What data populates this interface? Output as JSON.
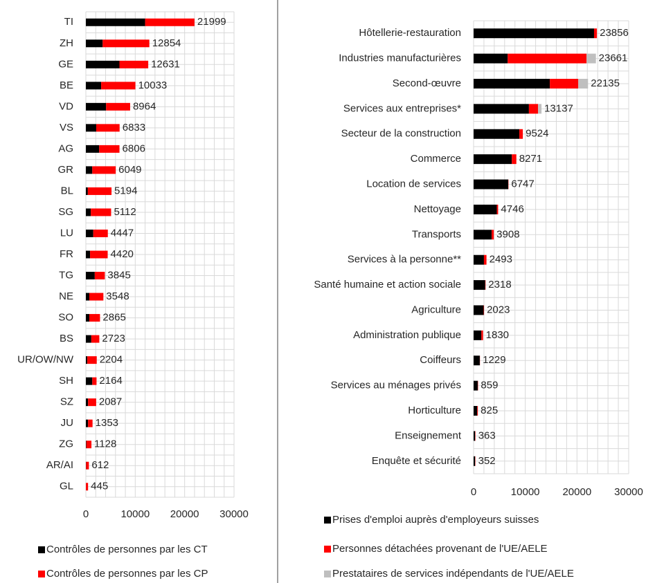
{
  "chart_data": [
    {
      "type": "hbar_stacked",
      "categories": [
        "TI",
        "ZH",
        "GE",
        "BE",
        "VD",
        "VS",
        "AG",
        "GR",
        "BL",
        "SG",
        "LU",
        "FR",
        "TG",
        "NE",
        "SO",
        "BS",
        "UR/OW/NW",
        "SH",
        "SZ",
        "JU",
        "ZG",
        "AR/AI",
        "GL"
      ],
      "series": [
        {
          "name": "Contrôles de personnes par les CT",
          "color": "#000000",
          "values": [
            12000,
            3400,
            6800,
            3100,
            4100,
            2100,
            2700,
            1300,
            400,
            1000,
            1500,
            850,
            1800,
            700,
            700,
            1100,
            300,
            1300,
            450,
            450,
            100,
            50,
            20
          ]
        },
        {
          "name": "Contrôles de personnes par les CP",
          "color": "#ff0000",
          "values": [
            9999,
            9454,
            5831,
            6933,
            4864,
            4733,
            4106,
            4749,
            4794,
            4112,
            2947,
            3570,
            2045,
            2848,
            2165,
            1623,
            1904,
            864,
            1637,
            903,
            1028,
            562,
            425
          ]
        }
      ],
      "totals": [
        21999,
        12854,
        12631,
        10033,
        8964,
        6833,
        6806,
        6049,
        5194,
        5112,
        4447,
        4420,
        3845,
        3548,
        2865,
        2723,
        2204,
        2164,
        2087,
        1353,
        1128,
        612,
        445
      ],
      "xlim": [
        0,
        30000
      ],
      "xticks": [
        0,
        10000,
        20000,
        30000
      ],
      "grid": true
    },
    {
      "type": "hbar_stacked",
      "categories": [
        "Hôtellerie-restauration",
        "Industries manufacturières",
        "Second-œuvre",
        "Services aux entreprises*",
        "Secteur de la construction",
        "Commerce",
        "Location de services",
        "Nettoyage",
        "Transports",
        "Services à la personne**",
        "Santé humaine et action sociale",
        "Agriculture",
        "Administration publique",
        "Coiffeurs",
        "Services au ménages privés",
        "Horticulture",
        "Enseignement",
        "Enquête et sécurité"
      ],
      "series": [
        {
          "name": "Prises d'emploi auprès d'employeurs suisses",
          "color": "#000000",
          "values": [
            23300,
            6600,
            14750,
            10700,
            8850,
            7400,
            6700,
            4500,
            3500,
            2000,
            2250,
            1950,
            1500,
            1200,
            800,
            700,
            300,
            300
          ]
        },
        {
          "name": "Personnes détachées provenant de l'UE/AELE",
          "color": "#ff0000",
          "values": [
            556,
            15250,
            5500,
            1770,
            674,
            871,
            47,
            246,
            408,
            493,
            68,
            73,
            330,
            29,
            59,
            125,
            63,
            52
          ]
        },
        {
          "name": "Prestataires de services indépendants de l'UE/AELE",
          "color": "#bfbfbf",
          "values": [
            0,
            1811,
            1885,
            667,
            0,
            0,
            0,
            0,
            0,
            0,
            0,
            0,
            0,
            0,
            0,
            0,
            0,
            0
          ]
        }
      ],
      "totals": [
        23856,
        23661,
        22135,
        13137,
        9524,
        8271,
        6747,
        4746,
        3908,
        2493,
        2318,
        2023,
        1830,
        1229,
        859,
        825,
        363,
        352
      ],
      "xlim": [
        0,
        30000
      ],
      "xticks": [
        0,
        10000,
        20000,
        30000
      ],
      "grid": true
    }
  ]
}
